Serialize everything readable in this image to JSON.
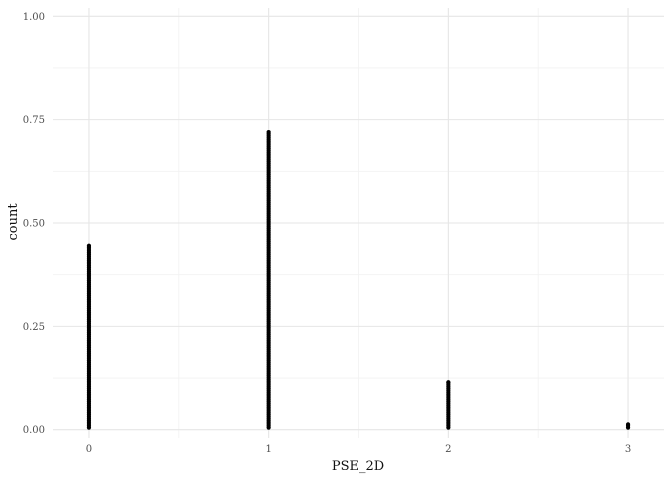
{
  "chart_data": {
    "type": "scatter",
    "xlabel": "PSE_2D",
    "ylabel": "count",
    "xlim": [
      -0.2,
      3.2
    ],
    "ylim": [
      -0.02,
      1.02
    ],
    "x_ticks": [
      0,
      1,
      2,
      3
    ],
    "x_tick_labels": [
      "0",
      "1",
      "2",
      "3"
    ],
    "y_ticks": [
      0,
      0.25,
      0.5,
      0.75,
      1.0
    ],
    "y_tick_labels": [
      "0.00",
      "0.25",
      "0.50",
      "0.75",
      "1.00"
    ],
    "grid": true,
    "point_color": "#000000",
    "series": [
      {
        "x": 0,
        "y_min": 0.005,
        "y_max": 0.445
      },
      {
        "x": 1,
        "y_min": 0.005,
        "y_max": 0.72
      },
      {
        "x": 2,
        "y_min": 0.005,
        "y_max": 0.115
      },
      {
        "x": 3,
        "y_min": 0.005,
        "y_max": 0.013
      }
    ]
  }
}
